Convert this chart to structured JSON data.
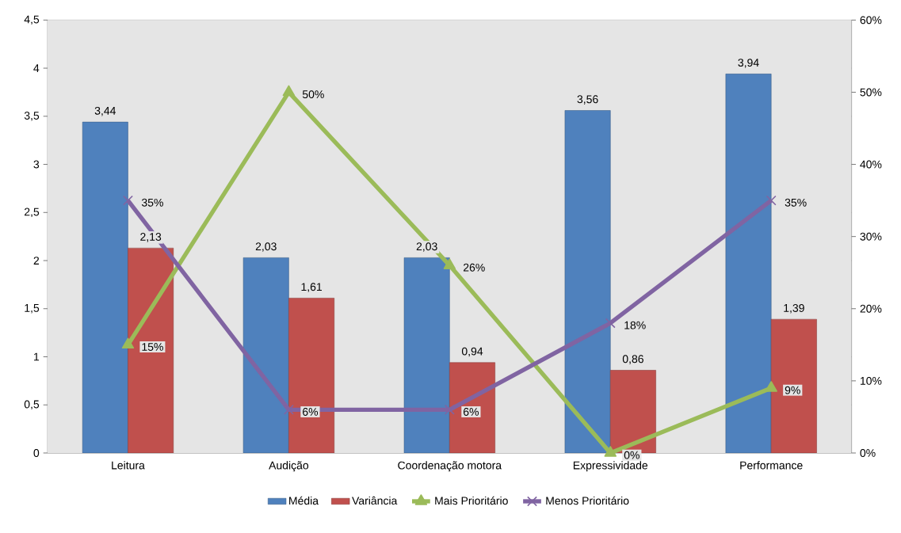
{
  "chart_data": {
    "type": "bar",
    "categories": [
      "Leitura",
      "Audição",
      "Coordenação motora",
      "Expressividade",
      "Performance"
    ],
    "series": [
      {
        "name": "Média",
        "color": "#4f81bd",
        "values": [
          3.44,
          2.03,
          2.03,
          3.56,
          3.94
        ],
        "value_labels": [
          "3,44",
          "2,03",
          "2,03",
          "3,56",
          "3,94"
        ]
      },
      {
        "name": "Variância",
        "color": "#c0504d",
        "values": [
          2.13,
          1.61,
          0.94,
          0.86,
          1.39
        ],
        "value_labels": [
          "2,13",
          "1,61",
          "0,94",
          "0,86",
          "1,39"
        ]
      },
      {
        "name": "Mais Prioritário",
        "type": "line",
        "axis": "y2",
        "marker": "triangle",
        "color": "#9bbb59",
        "values": [
          15,
          50,
          26,
          0,
          9
        ],
        "value_labels": [
          "15%",
          "50%",
          "26%",
          "0%",
          "9%"
        ]
      },
      {
        "name": "Menos Prioritário",
        "type": "line",
        "axis": "y2",
        "marker": "cross",
        "color": "#8064a2",
        "values": [
          35,
          6,
          6,
          18,
          35
        ],
        "value_labels": [
          "35%",
          "6%",
          "6%",
          "18%",
          "35%"
        ]
      }
    ],
    "ylim": [
      0,
      4.5
    ],
    "yticks": [
      0,
      {
        "value": 0.5,
        "label": "0,5"
      },
      1,
      {
        "value": 1.5,
        "label": "1,5"
      },
      2,
      {
        "value": 2.5,
        "label": "2,5"
      },
      3,
      {
        "value": 3.5,
        "label": "3,5"
      },
      4,
      {
        "value": 4.5,
        "label": "4,5"
      }
    ],
    "y2lim": [
      0,
      60
    ],
    "y2ticks": [
      {
        "value": 0,
        "label": "0%"
      },
      {
        "value": 10,
        "label": "10%"
      },
      {
        "value": 20,
        "label": "20%"
      },
      {
        "value": 30,
        "label": "30%"
      },
      {
        "value": 40,
        "label": "40%"
      },
      {
        "value": 50,
        "label": "50%"
      },
      {
        "value": 60,
        "label": "60%"
      }
    ],
    "grid": "y",
    "legend": "bottom"
  }
}
